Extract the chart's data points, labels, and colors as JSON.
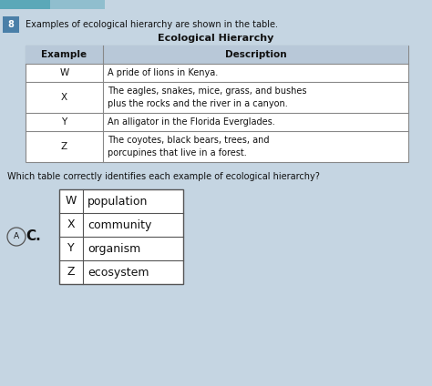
{
  "question_num": "8",
  "intro_text": "Examples of ecological hierarchy are shown in the table.",
  "table1_title": "Ecological Hierarchy",
  "table1_headers": [
    "Example",
    "Description"
  ],
  "table1_rows": [
    [
      "W",
      "A pride of lions in Kenya."
    ],
    [
      "X",
      "The eagles, snakes, mice, grass, and bushes\nplus the rocks and the river in a canyon."
    ],
    [
      "Y",
      "An alligator in the Florida Everglades."
    ],
    [
      "Z",
      "The coyotes, black bears, trees, and\nporcupines that live in a forest."
    ]
  ],
  "question_text": "Which table correctly identifies each example of ecological hierarchy?",
  "answer_label": "C.",
  "table2_rows": [
    [
      "W",
      "population"
    ],
    [
      "X",
      "community"
    ],
    [
      "Y",
      "organism"
    ],
    [
      "Z",
      "ecosystem"
    ]
  ],
  "circle_label": "A",
  "bg_color": "#c5d5e2",
  "header_bg": "#b8c8d8",
  "table_bg": "#ffffff",
  "num_box_color": "#4a7fa8",
  "font_color": "#111111",
  "top_bar1_color": "#5ba8b8",
  "top_bar2_color": "#90bece"
}
